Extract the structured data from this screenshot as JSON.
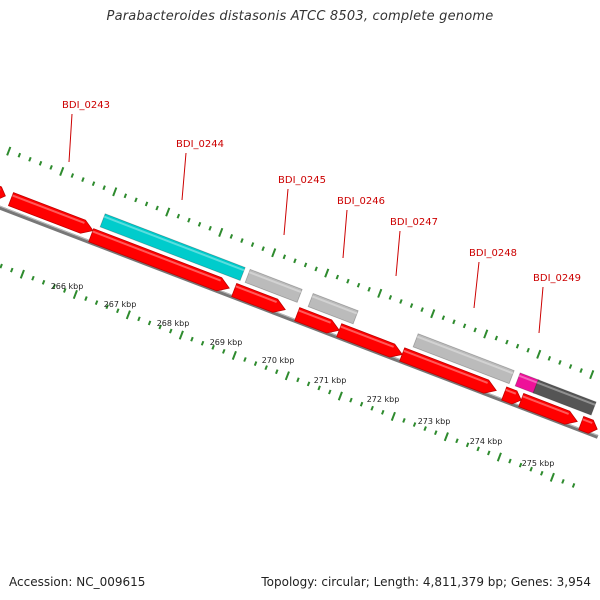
{
  "title": "Parabacteroides distasonis ATCC 8503, complete genome",
  "footer": {
    "accession": "Accession: NC_009615",
    "topology": "Topology: circular; Length: 4,811,379 bp; Genes: 3,954"
  },
  "colors": {
    "cds": "#ff0000",
    "cds_dark": "#c00000",
    "highlight": "#00cccc",
    "rna_gray": "#bbbbbb",
    "pseudo_dark": "#555555",
    "magenta": "#ee1199",
    "tick_green": "#2e8b2e",
    "label_red": "#cc0000",
    "backbone": "#777777"
  },
  "scale": {
    "unit": "kbp",
    "labels": [
      "266 kbp",
      "267 kbp",
      "268 kbp",
      "269 kbp",
      "270 kbp",
      "271 kbp",
      "272 kbp",
      "273 kbp",
      "274 kbp",
      "275 kbp"
    ]
  },
  "gene_labels": [
    "BDI_0243",
    "BDI_0244",
    "BDI_0245",
    "BDI_0246",
    "BDI_0247",
    "BDI_0248",
    "BDI_0249"
  ]
}
